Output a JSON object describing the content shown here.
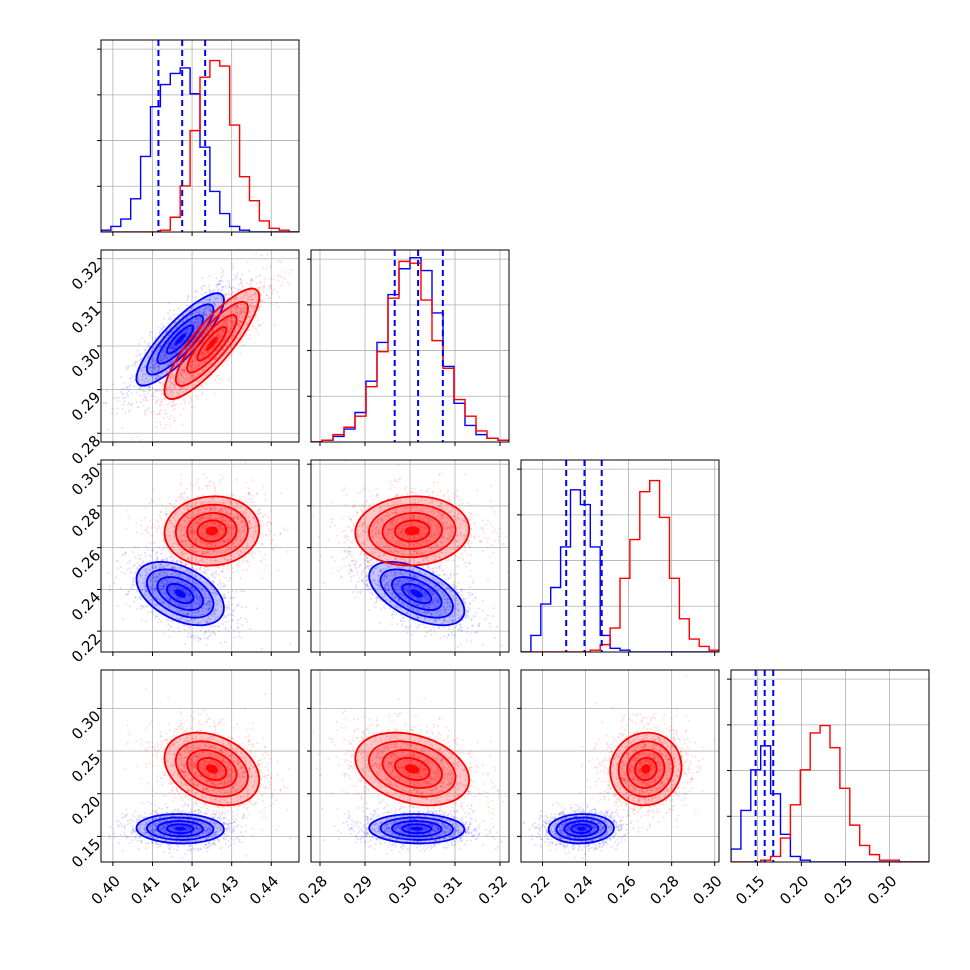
{
  "colors": {
    "series_a": "#0000ff",
    "series_b": "#ff0000"
  },
  "chart_data": {
    "type": "corner",
    "grid": true,
    "x_ticks": [
      [
        "0.40",
        "0.41",
        "0.42",
        "0.43",
        "0.44"
      ],
      [
        "0.28",
        "0.29",
        "0.30",
        "0.31",
        "0.32"
      ],
      [
        "0.22",
        "0.24",
        "0.26",
        "0.28",
        "0.30"
      ],
      [
        "0.15",
        "0.20",
        "0.25",
        "0.30"
      ]
    ],
    "y_ticks": [
      [],
      [
        "0.28",
        "0.29",
        "0.30",
        "0.31",
        "0.32"
      ],
      [
        "0.22",
        "0.24",
        "0.26",
        "0.28",
        "0.30"
      ],
      [
        "0.15",
        "0.20",
        "0.25",
        "0.30"
      ]
    ],
    "ranges": [
      [
        0.397,
        0.447
      ],
      [
        0.278,
        0.322
      ],
      [
        0.21,
        0.302
      ],
      [
        0.12,
        0.345
      ]
    ],
    "series": [
      {
        "color": "#0000ff",
        "quantiles": [
          [
            0.4115,
            0.4175,
            0.4233
          ],
          [
            0.2966,
            0.3018,
            0.3073
          ],
          [
            0.231,
            0.2395,
            0.2475
          ],
          [
            0.148,
            0.1583,
            0.168
          ]
        ],
        "hist_x": [
          0.398,
          0.444
        ],
        "hist": [
          [
            0.01,
            0.03,
            0.07,
            0.18,
            0.41,
            0.68,
            0.8,
            0.86,
            0.89,
            0.75,
            0.46,
            0.22,
            0.1,
            0.03,
            0.01,
            0.0,
            0.0,
            0.0,
            0.0,
            0.0
          ],
          [
            0.0,
            0.01,
            0.03,
            0.07,
            0.16,
            0.33,
            0.54,
            0.8,
            0.94,
            1.0,
            0.93,
            0.7,
            0.41,
            0.21,
            0.09,
            0.04,
            0.02,
            0.01
          ],
          [
            0.0,
            0.09,
            0.26,
            0.35,
            0.57,
            0.88,
            0.8,
            0.57,
            0.09,
            0.02,
            0.01,
            0.0,
            0.0,
            0.0,
            0.0,
            0.0,
            0.0,
            0.0,
            0.0,
            0.0
          ],
          [
            0.07,
            0.28,
            0.5,
            0.63,
            0.37,
            0.15,
            0.03,
            0.01,
            0.0,
            0.0,
            0.0,
            0.0,
            0.0,
            0.0,
            0.0,
            0.0,
            0.0,
            0.0,
            0.0,
            0.0
          ]
        ],
        "means": [
          0.417,
          0.3015,
          0.238,
          0.159
        ],
        "sigmas": [
          0.0048,
          0.0046,
          0.0066,
          0.0075
        ],
        "corr": [
          [
            1,
            0.85,
            -0.45,
            -0.05
          ],
          [
            0.85,
            1,
            -0.55,
            -0.05
          ],
          [
            -0.45,
            -0.55,
            1,
            0.05
          ],
          [
            -0.05,
            -0.05,
            0.05,
            1
          ]
        ]
      },
      {
        "color": "#ff0000",
        "hist": [
          [
            0.0,
            0.0,
            0.0,
            0.0,
            0.0,
            0.0,
            0.01,
            0.08,
            0.25,
            0.55,
            0.84,
            0.93,
            0.9,
            0.58,
            0.3,
            0.17,
            0.06,
            0.02,
            0.01,
            0.0
          ],
          [
            0.0,
            0.01,
            0.04,
            0.08,
            0.14,
            0.3,
            0.49,
            0.78,
            0.98,
            0.97,
            0.77,
            0.55,
            0.4,
            0.23,
            0.14,
            0.06,
            0.02,
            0.01
          ],
          [
            0.0,
            0.0,
            0.0,
            0.0,
            0.0,
            0.0,
            0.0,
            0.01,
            0.04,
            0.13,
            0.4,
            0.61,
            0.87,
            0.93,
            0.73,
            0.4,
            0.18,
            0.07,
            0.03,
            0.01
          ],
          [
            0.0,
            0.0,
            0.0,
            0.01,
            0.03,
            0.13,
            0.31,
            0.5,
            0.7,
            0.74,
            0.62,
            0.4,
            0.2,
            0.09,
            0.04,
            0.01,
            0.01,
            0.0,
            0.0,
            0.0
          ]
        ],
        "means": [
          0.425,
          0.3005,
          0.268,
          0.229
        ],
        "sigmas": [
          0.0052,
          0.0055,
          0.0072,
          0.0185
        ],
        "corr": [
          [
            1,
            0.85,
            0.05,
            -0.3
          ],
          [
            0.85,
            1,
            0.05,
            -0.3
          ],
          [
            0.05,
            0.05,
            1,
            0.05
          ],
          [
            -0.3,
            -0.3,
            0.05,
            1
          ]
        ]
      }
    ]
  }
}
